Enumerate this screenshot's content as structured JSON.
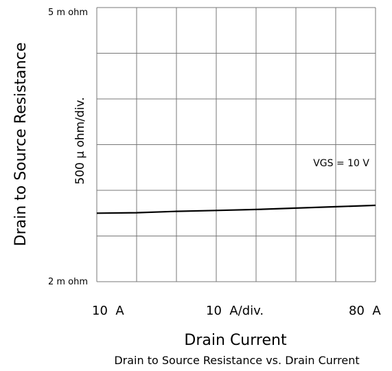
{
  "chart_data": {
    "type": "line",
    "title": "Drain to Source Resistance vs. Drain Current",
    "xlabel": "Drain Current",
    "ylabel": "Drain to Source Resistance",
    "ylabel_secondary": "500 μ ohm/div.",
    "x_tick_labels": {
      "min": "10  A",
      "mid": "10  A/div.",
      "max": "80  A"
    },
    "y_tick_labels": {
      "max": "5 m ohm",
      "min": "2 m ohm"
    },
    "xlim": [
      10,
      80
    ],
    "ylim": [
      2.0,
      5.0
    ],
    "x_divisions": 7,
    "y_divisions": 6,
    "grid": true,
    "series": [
      {
        "name": "VGS = 10 V",
        "x": [
          10,
          20,
          30,
          40,
          50,
          60,
          70,
          80
        ],
        "y": [
          2.75,
          2.755,
          2.77,
          2.78,
          2.79,
          2.805,
          2.82,
          2.835
        ]
      }
    ]
  }
}
